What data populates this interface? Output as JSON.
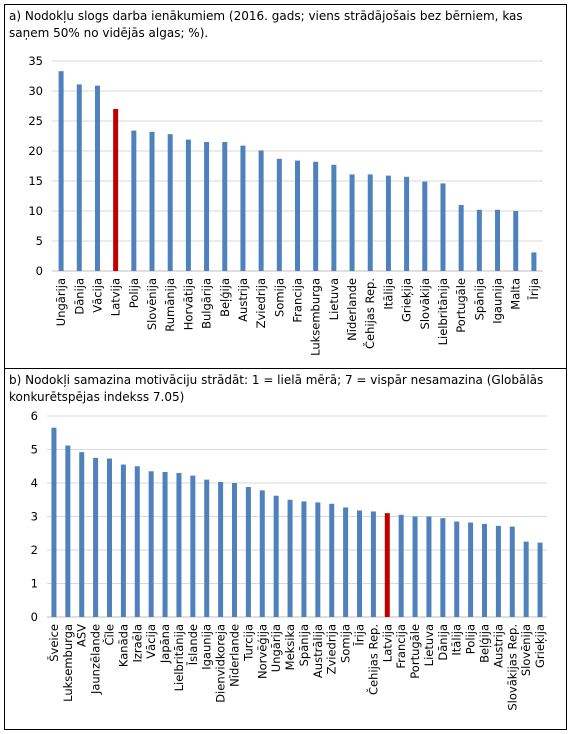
{
  "panels": [
    {
      "caption": "a) Nodokļu slogs darba ienākumiem (2016. gads; viens strādājošais bez bērniem, kas saņem 50% no vidējās algas; %).",
      "chart_data": {
        "type": "bar",
        "categories": [
          "Ungārija",
          "Dānija",
          "Vācija",
          "Latvija",
          "Polija",
          "Slovēnija",
          "Rumānija",
          "Horvātija",
          "Bulgārija",
          "Beļģija",
          "Austrija",
          "Zviedrija",
          "Somija",
          "Francija",
          "Luksemburga",
          "Lietuva",
          "Nīderlande",
          "Čehijas Rep.",
          "Itālija",
          "Grieķija",
          "Slovākija",
          "Lielbritānija",
          "Portugāle",
          "Spānija",
          "Igaunija",
          "Malta",
          "Īrija"
        ],
        "values": [
          33.3,
          31.1,
          30.9,
          27.0,
          23.4,
          23.2,
          22.8,
          21.9,
          21.5,
          21.5,
          20.9,
          20.1,
          18.7,
          18.4,
          18.2,
          17.7,
          16.1,
          16.1,
          15.9,
          15.7,
          14.9,
          14.6,
          11.0,
          10.2,
          10.2,
          10.0,
          3.1
        ],
        "yticks": [
          "0",
          "5",
          "10",
          "15",
          "20",
          "25",
          "30",
          "35"
        ],
        "ylim": [
          0,
          35
        ],
        "highlight": "Latvija",
        "colors": {
          "bar": "#4f81bd",
          "highlight": "#c00000",
          "grid": "#d9d9d9"
        }
      }
    },
    {
      "caption": "b) Nodokļi samazina motivāciju strādāt: 1 = lielā mērā; 7 = vispār nesamazina (Globālās konkurētspējas indekss 7.05)",
      "chart_data": {
        "type": "bar",
        "categories": [
          "Šveice",
          "Luksemburga",
          "ASV",
          "Jaunzēlande",
          "Čīle",
          "Kanāda",
          "Izraēla",
          "Vācija",
          "Japāna",
          "Lielbritānija",
          "Īslande",
          "Igaunija",
          "Dienvidkoreja",
          "Nīderlande",
          "Turcija",
          "Norvēģija",
          "Ungārija",
          "Meksika",
          "Spānija",
          "Austrālija",
          "Zviedrija",
          "Somija",
          "Īrija",
          "Čehijas Rep.",
          "Latvija",
          "Francija",
          "Portugāle",
          "Lietuva",
          "Dānija",
          "Itālija",
          "Polija",
          "Beļģija",
          "Austrija",
          "Slovākijas Rep.",
          "Slovēnija",
          "Grieķija"
        ],
        "values": [
          5.65,
          5.12,
          4.92,
          4.75,
          4.73,
          4.55,
          4.5,
          4.35,
          4.33,
          4.3,
          4.22,
          4.1,
          4.03,
          4.0,
          3.88,
          3.78,
          3.62,
          3.5,
          3.45,
          3.42,
          3.38,
          3.27,
          3.18,
          3.15,
          3.1,
          3.05,
          3.0,
          3.0,
          2.95,
          2.85,
          2.82,
          2.78,
          2.72,
          2.7,
          2.25,
          2.22
        ],
        "yticks": [
          "0",
          "1",
          "2",
          "3",
          "4",
          "5",
          "6"
        ],
        "ylim": [
          0,
          6
        ],
        "highlight": "Latvija",
        "colors": {
          "bar": "#4f81bd",
          "highlight": "#c00000",
          "grid": "#d9d9d9"
        }
      }
    }
  ]
}
